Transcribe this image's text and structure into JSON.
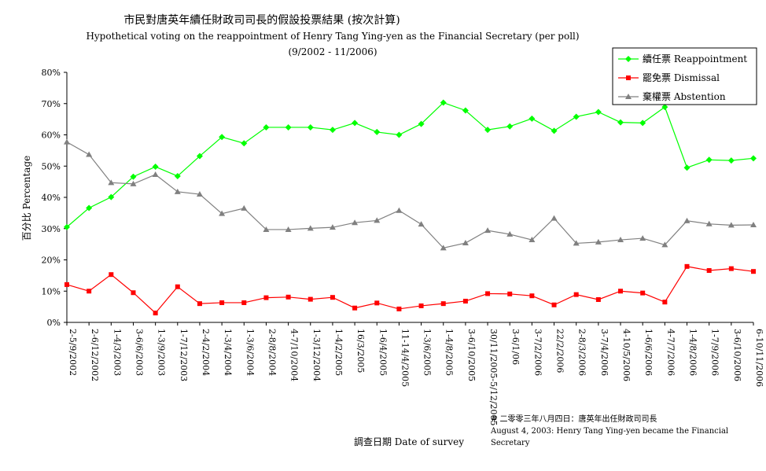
{
  "chart_data": {
    "type": "line",
    "title": "市民對唐英年續任財政司司長的假設投票結果 (按次計算)",
    "subtitle": "Hypothetical voting on the reappointment of Henry Tang Ying-yen as the Financial Secretary (per poll)",
    "period": "(9/2002 - 11/2006)",
    "xlabel": "調查日期 Date of survey",
    "ylabel": "百分比 Percentage",
    "ylim": [
      0,
      80
    ],
    "yticks": [
      "0%",
      "10%",
      "20%",
      "30%",
      "40%",
      "50%",
      "60%",
      "70%",
      "80%"
    ],
    "legend_position": "top-right",
    "categories": [
      "2-5/9/2002",
      "2-6/12/2002",
      "1-4/3/2003",
      "3-6/6/2003",
      "1-3/9/2003",
      "1-7/12/2003",
      "2-4/2/2004",
      "1-3/4/2004",
      "1-3/6/2004",
      "2-8/8/2004",
      "4-7/10/2004",
      "1-3/12/2004",
      "1-4/2/2005",
      "16/3/2005",
      "1-6/4/2005",
      "11-14/4/2005",
      "1-3/6/2005",
      "1-4/8/2005",
      "3-6/10/2005",
      "30/11/2005-5/12/2005",
      "3-6/1/06",
      "3-7/2/2006",
      "22/2/2006",
      "2-8/3/2006",
      "3-7/4/2006",
      "4-10/5/2006",
      "1-6/6/2006",
      "4-7/7/2006",
      "1-4/8/2006",
      "1-7/9/2006",
      "3-6/10/2006",
      "6-10/11/2006"
    ],
    "series": [
      {
        "name": "續任票 Reappointment",
        "color": "#00ff00",
        "marker": "diamond",
        "values": [
          30.5,
          36.6,
          40.1,
          46.6,
          49.8,
          46.8,
          53.2,
          59.3,
          57.3,
          62.4,
          62.4,
          62.4,
          61.6,
          63.8,
          60.9,
          60.0,
          63.5,
          70.3,
          67.8,
          61.6,
          62.7,
          65.2,
          61.3,
          65.8,
          67.3,
          64.0,
          63.8,
          68.9,
          49.5,
          52.0,
          51.8,
          52.5
        ]
      },
      {
        "name": "罷免票 Dismissal",
        "color": "#ff0000",
        "marker": "square",
        "values": [
          12.1,
          10.0,
          15.3,
          9.5,
          3.0,
          11.4,
          6.0,
          6.3,
          6.3,
          7.9,
          8.1,
          7.4,
          8.0,
          4.6,
          6.2,
          4.3,
          5.3,
          6.0,
          6.8,
          9.2,
          9.1,
          8.5,
          5.6,
          8.9,
          7.3,
          10.0,
          9.4,
          6.5,
          17.9,
          16.6,
          17.2,
          16.3
        ]
      },
      {
        "name": "棄權票 Abstention",
        "color": "#808080",
        "marker": "triangle",
        "values": [
          57.7,
          53.7,
          44.7,
          44.3,
          47.3,
          41.8,
          41.0,
          34.8,
          36.5,
          29.7,
          29.7,
          30.1,
          30.4,
          31.9,
          32.6,
          35.8,
          31.4,
          23.8,
          25.4,
          29.4,
          28.2,
          26.4,
          33.3,
          25.3,
          25.7,
          26.4,
          26.9,
          24.8,
          32.5,
          31.5,
          31.1,
          31.2
        ]
      }
    ],
    "annotation": {
      "line1": "# 二零零三年八月四日：唐英年出任財政司司長",
      "line2": "August 4, 2003: Henry Tang Ying-yen became the Financial",
      "line3": "Secretary"
    }
  }
}
